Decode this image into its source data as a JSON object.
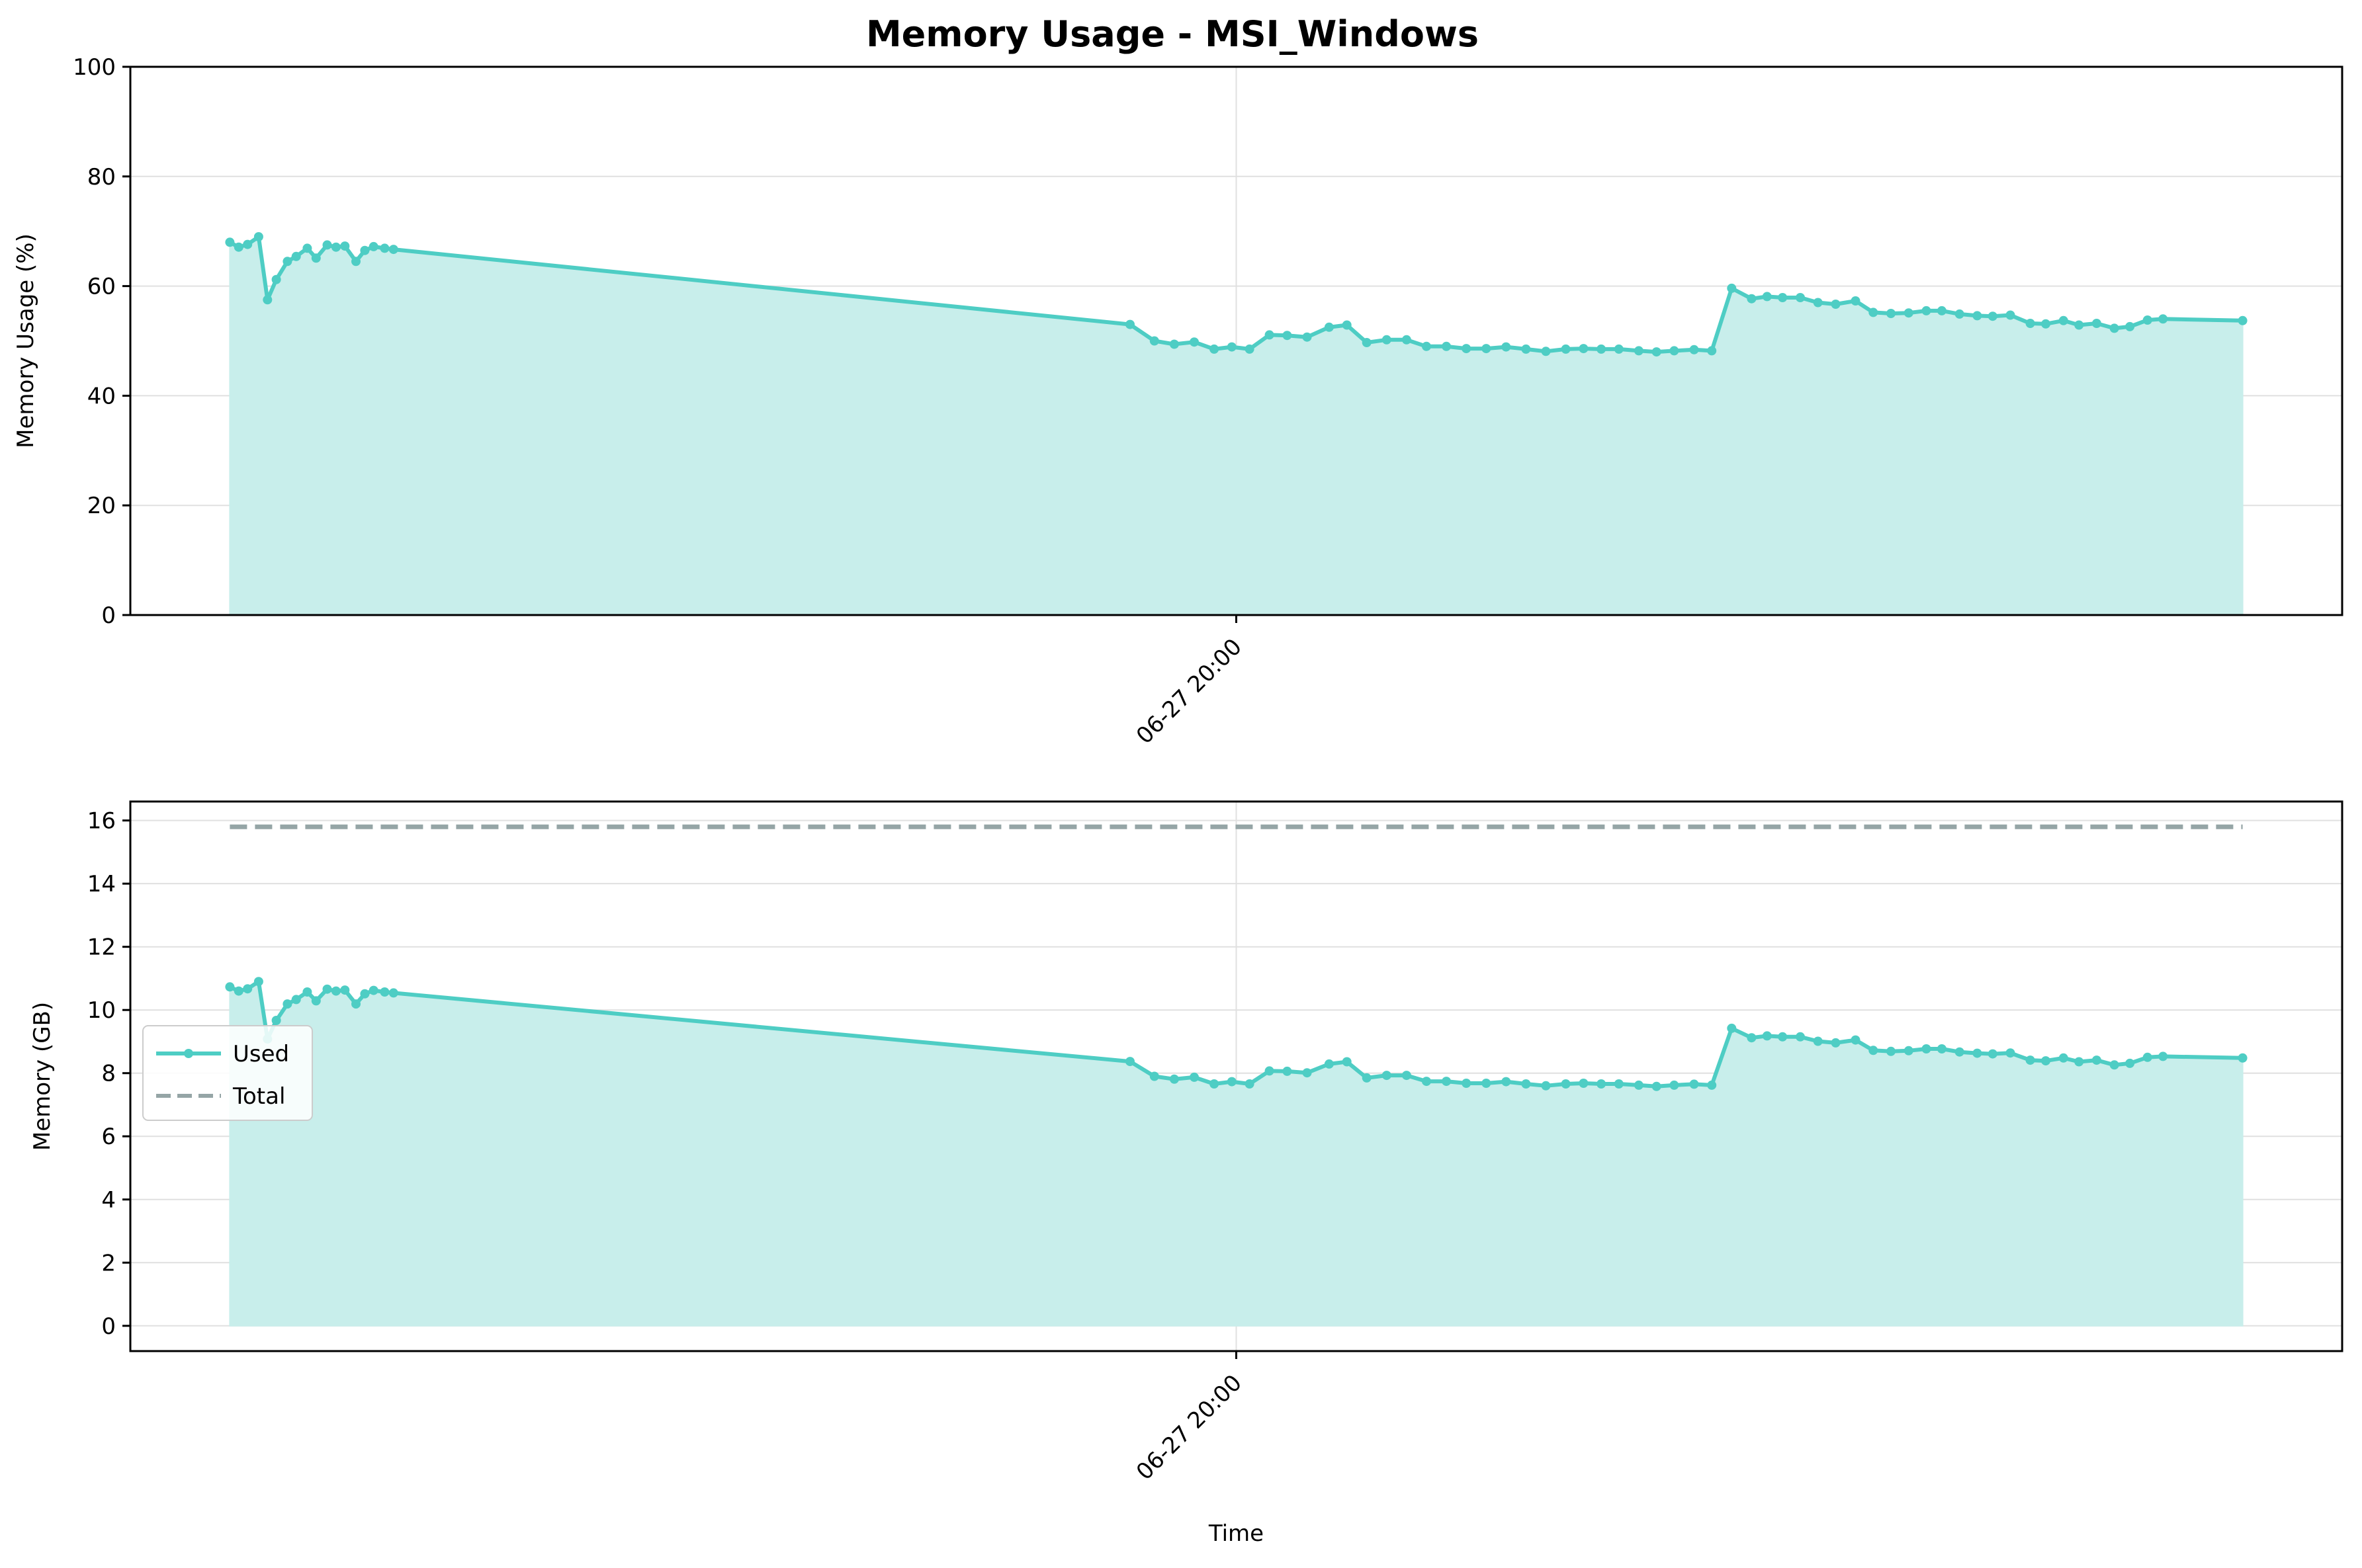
{
  "title": "Memory Usage - MSI_Windows",
  "colors": {
    "used": "#4ecdc4",
    "fill": "#c8eeeb",
    "total": "#95a5a6",
    "grid": "#e0e0e0",
    "axes": "#000000"
  },
  "chart_data": [
    {
      "type": "area",
      "xlabel": "",
      "ylabel": "Memory Usage (%)",
      "ylim": [
        0,
        100
      ],
      "yticks": [
        0,
        20,
        40,
        60,
        80,
        100
      ],
      "xticks": [
        {
          "pos": 0.5,
          "label": "06-27 20:00"
        }
      ],
      "grid": true,
      "series": [
        {
          "values": [
            68.0,
            67.1,
            67.6,
            69.0,
            57.5,
            61.2,
            64.5,
            65.4,
            66.9,
            65.1,
            67.5,
            67.1,
            67.3,
            64.5,
            66.5,
            67.2,
            66.9,
            66.7,
            53.0,
            50.0,
            49.4,
            49.8,
            48.5,
            48.9,
            48.5,
            51.1,
            51.0,
            50.7,
            52.5,
            52.9,
            49.7,
            50.2,
            50.2,
            49.0,
            49.0,
            48.6,
            48.6,
            48.9,
            48.5,
            48.1,
            48.5,
            48.6,
            48.5,
            48.5,
            48.2,
            48.0,
            48.2,
            48.4,
            48.2,
            59.6,
            57.7,
            58.1,
            57.9,
            57.9,
            57.0,
            56.7,
            57.3,
            55.2,
            55.0,
            55.1,
            55.5,
            55.5,
            54.9,
            54.6,
            54.5,
            54.7,
            53.2,
            53.1,
            53.7,
            52.9,
            53.2,
            52.3,
            52.6,
            53.8,
            54.0,
            53.7
          ],
          "x": [
            0.045,
            0.049,
            0.053,
            0.058,
            0.062,
            0.066,
            0.071,
            0.075,
            0.08,
            0.084,
            0.089,
            0.093,
            0.097,
            0.102,
            0.106,
            0.11,
            0.115,
            0.119,
            0.452,
            0.463,
            0.472,
            0.481,
            0.49,
            0.498,
            0.506,
            0.515,
            0.523,
            0.532,
            0.542,
            0.55,
            0.559,
            0.568,
            0.577,
            0.586,
            0.595,
            0.604,
            0.613,
            0.622,
            0.631,
            0.64,
            0.649,
            0.657,
            0.665,
            0.673,
            0.682,
            0.69,
            0.698,
            0.707,
            0.715,
            0.724,
            0.733,
            0.74,
            0.747,
            0.755,
            0.763,
            0.771,
            0.78,
            0.788,
            0.796,
            0.804,
            0.812,
            0.819,
            0.827,
            0.835,
            0.842,
            0.85,
            0.859,
            0.866,
            0.874,
            0.881,
            0.889,
            0.897,
            0.904,
            0.912,
            0.919,
            0.955
          ]
        }
      ]
    },
    {
      "type": "area",
      "xlabel": "Time",
      "ylabel": "Memory (GB)",
      "ylim": [
        -0.8,
        16.6
      ],
      "yticks": [
        0,
        2,
        4,
        6,
        8,
        10,
        12,
        14,
        16
      ],
      "xticks": [
        {
          "pos": 0.5,
          "label": "06-27 20:00"
        }
      ],
      "grid": true,
      "legend_position": "center-left",
      "series": [
        {
          "name": "Used",
          "style": "solid-markers",
          "values": [
            10.73,
            10.6,
            10.67,
            10.9,
            9.08,
            9.67,
            10.19,
            10.33,
            10.57,
            10.29,
            10.66,
            10.6,
            10.63,
            10.19,
            10.51,
            10.62,
            10.57,
            10.54,
            8.37,
            7.9,
            7.81,
            7.87,
            7.66,
            7.73,
            7.66,
            8.07,
            8.06,
            8.01,
            8.29,
            8.36,
            7.85,
            7.93,
            7.93,
            7.74,
            7.74,
            7.68,
            7.68,
            7.73,
            7.66,
            7.6,
            7.66,
            7.68,
            7.66,
            7.66,
            7.62,
            7.58,
            7.62,
            7.65,
            7.62,
            9.42,
            9.12,
            9.18,
            9.15,
            9.15,
            9.01,
            8.96,
            9.05,
            8.72,
            8.69,
            8.71,
            8.77,
            8.77,
            8.67,
            8.63,
            8.61,
            8.64,
            8.41,
            8.39,
            8.48,
            8.36,
            8.41,
            8.26,
            8.31,
            8.5,
            8.53,
            8.48
          ],
          "x": [
            0.045,
            0.049,
            0.053,
            0.058,
            0.062,
            0.066,
            0.071,
            0.075,
            0.08,
            0.084,
            0.089,
            0.093,
            0.097,
            0.102,
            0.106,
            0.11,
            0.115,
            0.119,
            0.452,
            0.463,
            0.472,
            0.481,
            0.49,
            0.498,
            0.506,
            0.515,
            0.523,
            0.532,
            0.542,
            0.55,
            0.559,
            0.568,
            0.577,
            0.586,
            0.595,
            0.604,
            0.613,
            0.622,
            0.631,
            0.64,
            0.649,
            0.657,
            0.665,
            0.673,
            0.682,
            0.69,
            0.698,
            0.707,
            0.715,
            0.724,
            0.733,
            0.74,
            0.747,
            0.755,
            0.763,
            0.771,
            0.78,
            0.788,
            0.796,
            0.804,
            0.812,
            0.819,
            0.827,
            0.835,
            0.842,
            0.85,
            0.859,
            0.866,
            0.874,
            0.881,
            0.889,
            0.897,
            0.904,
            0.912,
            0.919,
            0.955
          ]
        },
        {
          "name": "Total",
          "style": "dashed",
          "values": [
            15.8,
            15.8
          ],
          "x": [
            0.045,
            0.955
          ]
        }
      ]
    }
  ]
}
